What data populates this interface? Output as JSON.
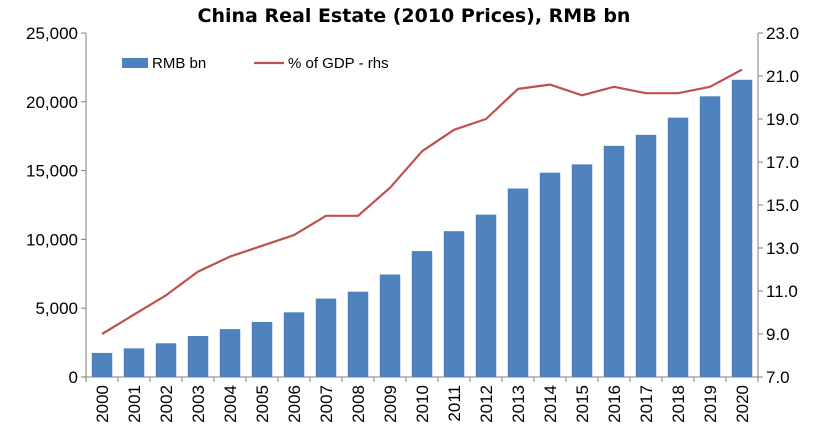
{
  "chart_data": {
    "type": "bar",
    "title": "China Real Estate (2010 Prices), RMB bn",
    "categories": [
      "2000",
      "2001",
      "2002",
      "2003",
      "2004",
      "2005",
      "2006",
      "2007",
      "2008",
      "2009",
      "2010",
      "2011",
      "2012",
      "2013",
      "2014",
      "2015",
      "2016",
      "2017",
      "2018",
      "2019",
      "2020"
    ],
    "series": [
      {
        "name": "RMB bn",
        "type": "bar",
        "axis": "left",
        "color": "#4F81BD",
        "values": [
          1750,
          2080,
          2450,
          2980,
          3480,
          4000,
          4700,
          5700,
          6200,
          7450,
          9150,
          10600,
          11800,
          13700,
          14850,
          15450,
          16800,
          17600,
          18850,
          20400,
          21600
        ]
      },
      {
        "name": "% of GDP - rhs",
        "type": "line",
        "axis": "right",
        "color": "#C0504D",
        "values": [
          9.0,
          9.9,
          10.8,
          11.9,
          12.6,
          13.1,
          13.6,
          14.5,
          14.5,
          15.8,
          17.5,
          18.5,
          19.0,
          20.4,
          20.6,
          20.1,
          20.5,
          20.2,
          20.2,
          20.5,
          21.3
        ]
      }
    ],
    "y_left": {
      "min": 0,
      "max": 25000,
      "ticks": [
        "0",
        "5,000",
        "10,000",
        "15,000",
        "20,000",
        "25,000"
      ],
      "tick_values": [
        0,
        5000,
        10000,
        15000,
        20000,
        25000
      ]
    },
    "y_right": {
      "min": 7.0,
      "max": 23.0,
      "ticks": [
        "7.0",
        "9.0",
        "11.0",
        "13.0",
        "15.0",
        "17.0",
        "19.0",
        "21.0",
        "23.0"
      ],
      "tick_values": [
        7,
        9,
        11,
        13,
        15,
        17,
        19,
        21,
        23
      ]
    },
    "grid": false,
    "legend_position": "top-left"
  }
}
